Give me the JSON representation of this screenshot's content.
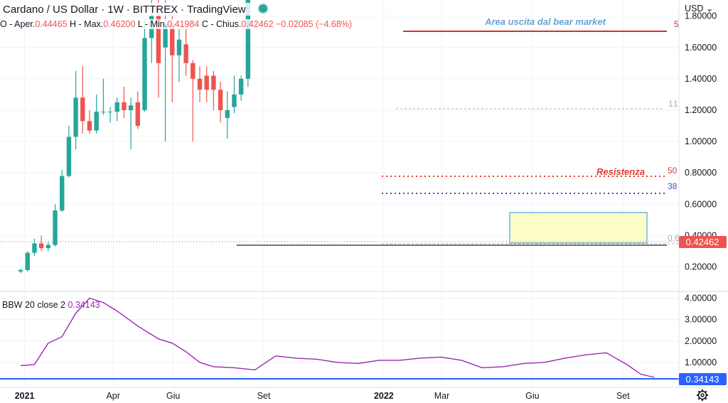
{
  "header": {
    "title": "Cardano / US Dollar",
    "interval": "1W",
    "exchange": "BITTREX",
    "source": "TradingView"
  },
  "ohlc": {
    "open_label": "O - Aper.",
    "open": "0.44465",
    "high_label": "H - Max.",
    "high": "0.46200",
    "low_label": "L - Min.",
    "low": "0.41984",
    "close_label": "C - Chius.",
    "close": "0.42462",
    "change": "−0.02085 (−4.68%)"
  },
  "currency": "USD",
  "colors": {
    "up": "#26a69a",
    "down": "#ef5350",
    "bbw": "#9c27b0",
    "resistance": "#e53935",
    "fib_blue": "#3f51b5",
    "range_box": "#fdfdc0",
    "range_border": "#2196f3"
  },
  "chart_data": [
    {
      "type": "candlestick",
      "title": "Cardano / US Dollar",
      "y_ticks": [
        "0.20000",
        "0.40000",
        "0.60000",
        "0.80000",
        "1.00000",
        "1.20000",
        "1.40000",
        "1.60000",
        "1.80000"
      ],
      "ylim": [
        0.08,
        1.88
      ],
      "x_ticks": [
        "2021",
        "Apr",
        "Giu",
        "Set",
        "2022",
        "Mar",
        "Giu",
        "Set"
      ],
      "last_price": "0.42462",
      "candles": [
        {
          "t": "2020-12-28",
          "o": 0.17,
          "h": 0.19,
          "l": 0.16,
          "c": 0.18
        },
        {
          "t": "2021-01-04",
          "o": 0.18,
          "h": 0.3,
          "l": 0.17,
          "c": 0.29
        },
        {
          "t": "2021-01-11",
          "o": 0.29,
          "h": 0.38,
          "l": 0.27,
          "c": 0.35
        },
        {
          "t": "2021-01-18",
          "o": 0.35,
          "h": 0.4,
          "l": 0.3,
          "c": 0.32
        },
        {
          "t": "2021-01-25",
          "o": 0.32,
          "h": 0.36,
          "l": 0.3,
          "c": 0.34
        },
        {
          "t": "2021-02-01",
          "o": 0.34,
          "h": 0.6,
          "l": 0.33,
          "c": 0.56
        },
        {
          "t": "2021-02-08",
          "o": 0.56,
          "h": 0.82,
          "l": 0.55,
          "c": 0.78
        },
        {
          "t": "2021-02-15",
          "o": 0.78,
          "h": 1.1,
          "l": 0.77,
          "c": 1.03
        },
        {
          "t": "2021-02-22",
          "o": 1.03,
          "h": 1.45,
          "l": 0.95,
          "c": 1.28
        },
        {
          "t": "2021-03-01",
          "o": 1.28,
          "h": 1.48,
          "l": 1.05,
          "c": 1.13
        },
        {
          "t": "2021-03-08",
          "o": 1.13,
          "h": 1.2,
          "l": 1.05,
          "c": 1.07
        },
        {
          "t": "2021-03-15",
          "o": 1.07,
          "h": 1.3,
          "l": 1.05,
          "c": 1.19
        },
        {
          "t": "2021-03-22",
          "o": 1.19,
          "h": 1.4,
          "l": 1.17,
          "c": 1.19
        },
        {
          "t": "2021-03-29",
          "o": 1.19,
          "h": 1.22,
          "l": 1.12,
          "c": 1.19
        },
        {
          "t": "2021-04-05",
          "o": 1.19,
          "h": 1.28,
          "l": 1.13,
          "c": 1.25
        },
        {
          "t": "2021-04-12",
          "o": 1.25,
          "h": 1.35,
          "l": 1.15,
          "c": 1.2
        },
        {
          "t": "2021-04-19",
          "o": 1.2,
          "h": 1.28,
          "l": 0.95,
          "c": 1.23
        },
        {
          "t": "2021-04-26",
          "o": 1.25,
          "h": 1.32,
          "l": 1.08,
          "c": 1.1
        },
        {
          "t": "2021-05-03",
          "o": 1.2,
          "h": 1.78,
          "l": 1.19,
          "c": 1.66
        },
        {
          "t": "2021-05-10",
          "o": 1.66,
          "h": 2.3,
          "l": 1.5,
          "c": 1.8
        },
        {
          "t": "2021-05-17",
          "o": 1.8,
          "h": 2.3,
          "l": 1.28,
          "c": 1.5
        },
        {
          "t": "2021-05-24",
          "o": 1.6,
          "h": 1.9,
          "l": 1.0,
          "c": 1.75
        },
        {
          "t": "2021-05-31",
          "o": 1.75,
          "h": 1.8,
          "l": 1.25,
          "c": 1.55
        },
        {
          "t": "2021-06-07",
          "o": 1.55,
          "h": 1.72,
          "l": 1.38,
          "c": 1.65
        },
        {
          "t": "2021-06-14",
          "o": 1.62,
          "h": 1.72,
          "l": 1.42,
          "c": 1.5
        },
        {
          "t": "2021-06-21",
          "o": 1.5,
          "h": 1.52,
          "l": 1.0,
          "c": 1.4
        },
        {
          "t": "2021-06-28",
          "o": 1.4,
          "h": 1.48,
          "l": 1.25,
          "c": 1.33
        },
        {
          "t": "2021-07-05",
          "o": 1.42,
          "h": 1.48,
          "l": 1.25,
          "c": 1.33
        },
        {
          "t": "2021-07-12",
          "o": 1.42,
          "h": 1.45,
          "l": 1.2,
          "c": 1.33
        },
        {
          "t": "2021-07-19",
          "o": 1.33,
          "h": 1.38,
          "l": 1.12,
          "c": 1.2
        },
        {
          "t": "2021-07-26",
          "o": 1.15,
          "h": 1.32,
          "l": 1.02,
          "c": 1.2
        },
        {
          "t": "2021-08-02",
          "o": 1.22,
          "h": 1.42,
          "l": 1.18,
          "c": 1.3
        },
        {
          "t": "2021-08-09",
          "o": 1.3,
          "h": 1.42,
          "l": 1.26,
          "c": 1.4
        },
        {
          "t": "2021-08-16",
          "o": 1.4,
          "h": 2.2,
          "l": 1.35,
          "c": 2.1
        }
      ]
    },
    {
      "type": "line",
      "title": "BBW",
      "params": "20 close 2",
      "last_value": "0.34143",
      "y_ticks": [
        "1.00000",
        "2.00000",
        "3.00000",
        "4.00000"
      ],
      "ylim": [
        0.0,
        4.25
      ],
      "points": [
        [
          "2020-12-28",
          0.85
        ],
        [
          "2021-01-11",
          0.9
        ],
        [
          "2021-01-25",
          1.9
        ],
        [
          "2021-02-08",
          2.2
        ],
        [
          "2021-02-22",
          3.3
        ],
        [
          "2021-03-08",
          4.0
        ],
        [
          "2021-03-22",
          3.8
        ],
        [
          "2021-04-05",
          3.4
        ],
        [
          "2021-04-26",
          2.7
        ],
        [
          "2021-05-17",
          2.1
        ],
        [
          "2021-05-31",
          1.9
        ],
        [
          "2021-06-14",
          1.5
        ],
        [
          "2021-06-28",
          1.0
        ],
        [
          "2021-07-12",
          0.8
        ],
        [
          "2021-08-02",
          0.75
        ],
        [
          "2021-08-23",
          0.65
        ],
        [
          "2021-09-13",
          1.3
        ],
        [
          "2021-10-04",
          1.2
        ],
        [
          "2021-10-25",
          1.15
        ],
        [
          "2021-11-15",
          1.0
        ],
        [
          "2021-12-06",
          0.95
        ],
        [
          "2021-12-27",
          1.1
        ],
        [
          "2022-01-17",
          1.1
        ],
        [
          "2022-02-07",
          1.2
        ],
        [
          "2022-02-28",
          1.25
        ],
        [
          "2022-03-21",
          1.1
        ],
        [
          "2022-04-11",
          0.75
        ],
        [
          "2022-05-02",
          0.8
        ],
        [
          "2022-05-23",
          0.95
        ],
        [
          "2022-06-13",
          1.0
        ],
        [
          "2022-07-04",
          1.2
        ],
        [
          "2022-07-25",
          1.35
        ],
        [
          "2022-08-15",
          1.45
        ],
        [
          "2022-09-05",
          0.9
        ],
        [
          "2022-09-19",
          0.45
        ],
        [
          "2022-10-03",
          0.3
        ]
      ]
    }
  ],
  "annotations": {
    "bear_label": "Area uscita dal bear market",
    "resistance_label": "Resistenza",
    "fib_1": "1",
    "fib_0236": "0.",
    "fib_05": "50",
    "fib_0382": "38",
    "fib_0": "0.6",
    "right_5": "5"
  },
  "bbw_legend": {
    "name": "BBW",
    "params": "20 close 2",
    "value": "0.34143"
  }
}
